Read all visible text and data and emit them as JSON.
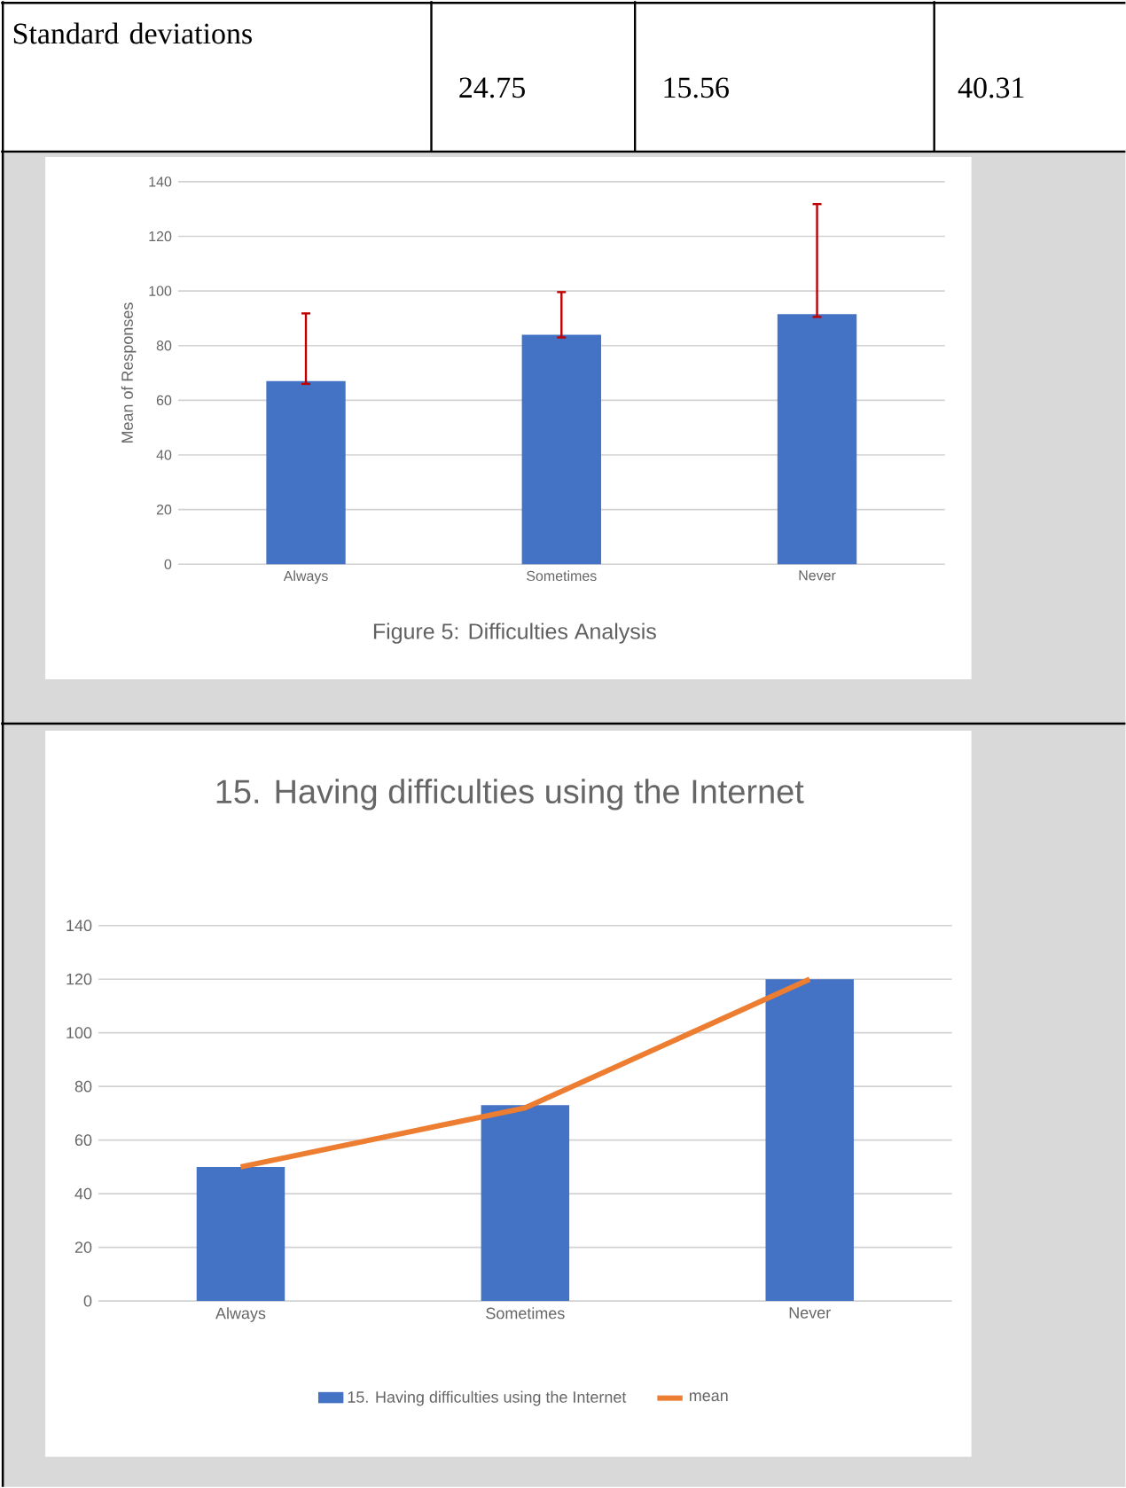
{
  "chart_data": [
    {
      "type": "other",
      "annotations": [
        "Standard deviations",
        "24.75",
        "15.56",
        "40.31"
      ]
    },
    {
      "type": "bar",
      "categories": [
        "Always",
        "Sometimes",
        "Never"
      ],
      "values": [
        67,
        84,
        91.5
      ],
      "color": "#4472c4",
      "errors": [
        [
          66,
          91.8
        ],
        [
          83,
          99.6
        ],
        [
          90.5,
          131.8
        ]
      ],
      "ylabel": "Mean of Responses",
      "ylim": [
        0,
        140
      ],
      "yticks": [
        0,
        20,
        40,
        60,
        80,
        100,
        120,
        140
      ],
      "grid": "y",
      "annotations": [
        "Figure 5: Difficulties Analysis"
      ]
    },
    {
      "type": "bar",
      "title": "15. Having difficulties using the Internet",
      "categories": [
        "Always",
        "Sometimes",
        "Never"
      ],
      "series": [
        {
          "name": "15. Having difficulties using the Internet",
          "color": "#4472c4",
          "values": [
            50,
            73,
            120
          ]
        },
        {
          "name": "mean",
          "type": "line",
          "color": "#ed7d31",
          "values": [
            50,
            72,
            120
          ]
        }
      ],
      "ylim": [
        0,
        140
      ],
      "yticks": [
        0,
        20,
        40,
        60,
        80,
        100,
        120,
        140
      ],
      "grid": "y",
      "legend": "bottom"
    }
  ]
}
